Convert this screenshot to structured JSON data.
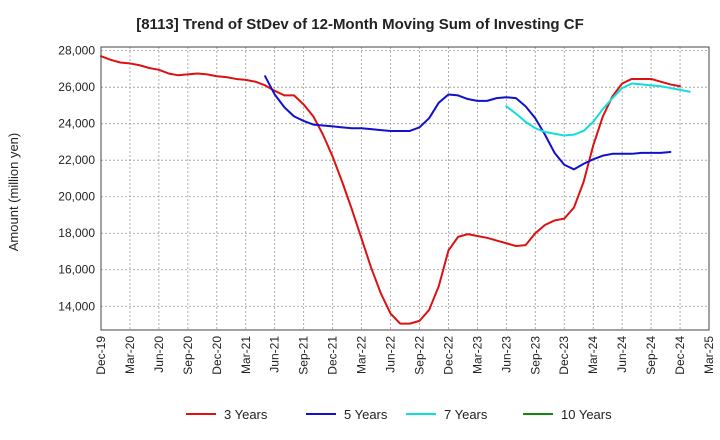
{
  "chart_data": {
    "type": "line",
    "title": "[8113]  Trend of StDev of 12-Month Moving Sum of Investing CF",
    "xlabel": "",
    "ylabel": "Amount (million yen)",
    "ylim": [
      12700,
      28200
    ],
    "yticks": [
      14000,
      16000,
      18000,
      20000,
      22000,
      24000,
      26000,
      28000
    ],
    "ytick_labels": [
      "14,000",
      "16,000",
      "18,000",
      "20,000",
      "22,000",
      "24,000",
      "26,000",
      "28,000"
    ],
    "x_tick_labels": [
      "Dec-19",
      "Mar-20",
      "Jun-20",
      "Sep-20",
      "Dec-20",
      "Mar-21",
      "Jun-21",
      "Sep-21",
      "Dec-21",
      "Mar-22",
      "Jun-22",
      "Sep-22",
      "Dec-22",
      "Mar-23",
      "Jun-23",
      "Sep-23",
      "Dec-23",
      "Mar-24",
      "Jun-24",
      "Sep-24",
      "Dec-24",
      "Mar-25"
    ],
    "grid": true,
    "legend_position": "bottom",
    "series": [
      {
        "name": "3 Years",
        "color": "#dd1111",
        "start_month": "Dec-19",
        "values": [
          27700,
          27500,
          27350,
          27300,
          27200,
          27050,
          26950,
          26750,
          26650,
          26700,
          26750,
          26700,
          26600,
          26550,
          26450,
          26400,
          26300,
          26100,
          25800,
          25550,
          25550,
          25050,
          24400,
          23400,
          22200,
          20800,
          19300,
          17700,
          16100,
          14700,
          13600,
          13050,
          13050,
          13200,
          13800,
          15100,
          17050,
          17800,
          17950,
          17850,
          17750,
          17600,
          17450,
          17300,
          17350,
          18000,
          18450,
          18700,
          18800,
          19400,
          20800,
          22800,
          24400,
          25500,
          26200,
          26450,
          26450,
          26450,
          26300,
          26150,
          26050
        ]
      },
      {
        "name": "5 Years",
        "color": "#1111cc",
        "start_month": "May-21",
        "values": [
          26600,
          25600,
          24900,
          24400,
          24150,
          23950,
          23900,
          23850,
          23800,
          23750,
          23750,
          23700,
          23650,
          23600,
          23600,
          23600,
          23800,
          24300,
          25150,
          25600,
          25550,
          25350,
          25250,
          25250,
          25400,
          25450,
          25400,
          24950,
          24300,
          23400,
          22400,
          21750,
          21500,
          21800,
          22050,
          22250,
          22350,
          22350,
          22350,
          22400,
          22400,
          22400,
          22450
        ]
      },
      {
        "name": "7 Years",
        "color": "#11dddd",
        "start_month": "Jun-23",
        "values": [
          24950,
          24550,
          24100,
          23750,
          23550,
          23450,
          23350,
          23400,
          23600,
          24100,
          24800,
          25400,
          25950,
          26200,
          26150,
          26100,
          26050,
          25950,
          25850,
          25750
        ]
      },
      {
        "name": "10 Years",
        "color": "#118811",
        "start_month": "",
        "values": []
      }
    ]
  }
}
